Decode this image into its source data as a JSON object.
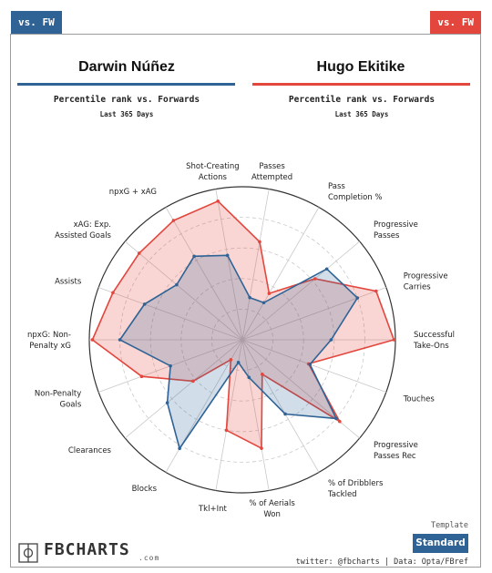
{
  "tags": {
    "left": "vs. FW",
    "right": "vs. FW"
  },
  "players": {
    "left": {
      "name": "Darwin Núñez",
      "subtitle": "Percentile rank vs. Forwards",
      "period": "Last 365 Days"
    },
    "right": {
      "name": "Hugo Ekitike",
      "subtitle": "Percentile rank vs. Forwards",
      "period": "Last 365 Days"
    }
  },
  "colors": {
    "left": "#2f6396",
    "right": "#e3463c",
    "left_fill": "rgba(47,99,150,0.22)",
    "right_fill": "rgba(227,70,60,0.22)"
  },
  "chart_data": {
    "type": "radar",
    "rmax": 100,
    "gridlines": [
      20,
      40,
      60,
      80,
      100
    ],
    "axes": [
      "Passes Attempted",
      "Pass Completion %",
      "Progressive Passes",
      "Progressive Carries",
      "Successful Take-Ons",
      "Touches",
      "Progressive Passes Rec",
      "% of Dribblers Tackled",
      "% of Aerials Won",
      "Tkl+Int",
      "Blocks",
      "Clearances",
      "Non-Penalty Goals",
      "npxG: Non-Penalty xG",
      "Assists",
      "xAG: Exp. Assisted Goals",
      "npxG + xAG",
      "Shot-Creating Actions"
    ],
    "axis_labels": [
      [
        "Passes",
        "Attempted"
      ],
      [
        "Pass",
        "Completion %"
      ],
      [
        "Progressive",
        "Passes"
      ],
      [
        "Progressive",
        "Carries"
      ],
      [
        "Successful",
        "Take-Ons"
      ],
      [
        "Touches"
      ],
      [
        "Progressive",
        "Passes Rec"
      ],
      [
        "% of Dribblers",
        "Tackled"
      ],
      [
        "% of Aerials",
        "Won"
      ],
      [
        "Tkl+Int"
      ],
      [
        "Blocks"
      ],
      [
        "Clearances"
      ],
      [
        "Non-Penalty",
        "Goals"
      ],
      [
        "npxG: Non-",
        "Penalty xG"
      ],
      [
        "Assists"
      ],
      [
        "xAG: Exp.",
        "Assisted Goals"
      ],
      [
        "npxG + xAG"
      ],
      [
        "Shot-Creating",
        "Actions"
      ]
    ],
    "series": [
      {
        "name": "Darwin Núñez",
        "values": [
          28,
          28,
          72,
          80,
          58,
          47,
          80,
          56,
          25,
          15,
          82,
          64,
          50,
          80,
          68,
          56,
          63,
          56
        ]
      },
      {
        "name": "Hugo Ekitike",
        "values": [
          65,
          35,
          62,
          93,
          99,
          46,
          83,
          26,
          72,
          60,
          15,
          42,
          70,
          98,
          90,
          88,
          90,
          92
        ]
      }
    ]
  },
  "footer": {
    "logo": "FBCHARTS",
    "logo_suffix": ".com",
    "template_label": "Template",
    "template_value": "Standard",
    "credits": "twitter: @fbcharts | Data: Opta/FBref"
  }
}
